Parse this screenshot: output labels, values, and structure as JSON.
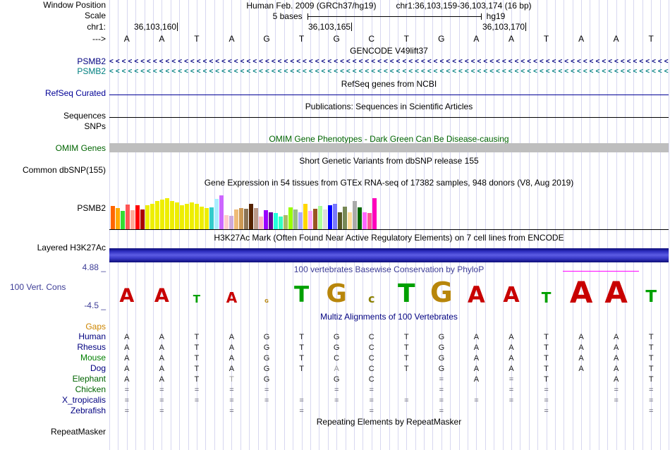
{
  "colors": {
    "grid": "#d7d7f0",
    "magenta_overline": "#ff00ff",
    "baseline": "#000000"
  },
  "header": {
    "assembly": "Human Feb. 2009 (GRCh37/hg19)",
    "position": "chr1:36,103,159-36,103,174 (16 bp)",
    "window_position_label": "Window Position",
    "scale_label": "Scale",
    "scale_value": "5 bases",
    "genome": "hg19",
    "chrom_label": "chr1:",
    "strand_arrow": "--->",
    "coordinates": [
      "36,103,160",
      "36,103,165",
      "36,103,170"
    ],
    "sequence": [
      "A",
      "A",
      "T",
      "A",
      "G",
      "T",
      "G",
      "C",
      "T",
      "G",
      "A",
      "A",
      "T",
      "A",
      "A",
      "T"
    ]
  },
  "tracks": {
    "gencode": {
      "title": "GENCODE V49lift37",
      "genes": [
        {
          "label": "PSMB2",
          "color": "#000080",
          "strand_char": "<"
        },
        {
          "label": "PSMB2",
          "color": "#008080",
          "strand_char": "<"
        }
      ]
    },
    "refseq": {
      "label": "RefSeq Curated",
      "title": "RefSeq genes from NCBI",
      "color": "#000096",
      "line_color": "#000096"
    },
    "publications": {
      "label": "Sequences",
      "title": "Publications: Sequences in Scientific Articles",
      "line_color": "#000000"
    },
    "snps": {
      "label": "SNPs"
    },
    "omim": {
      "label": "OMIM Genes",
      "label_color": "#006400",
      "title": "OMIM Gene Phenotypes - Dark Green Can Be Disease-causing",
      "title_color": "#006400",
      "bar_color": "#bebebe"
    },
    "dbsnp": {
      "label": "Common dbSNP(155)",
      "title": "Short Genetic Variants from dbSNP release 155"
    },
    "gtex": {
      "label": "PSMB2",
      "title": "Gene Expression in 54 tissues from GTEx RNA-seq of 17382 samples, 948 donors (V8, Aug 2019)",
      "bars": [
        [
          "#FF6600",
          33
        ],
        [
          "#FFAA00",
          30
        ],
        [
          "#33DD33",
          26
        ],
        [
          "#FF5555",
          35
        ],
        [
          "#FFAA99",
          27
        ],
        [
          "#FF0000",
          34
        ],
        [
          "#AA0000",
          28
        ],
        [
          "#EEEE00",
          34
        ],
        [
          "#EEEE00",
          36
        ],
        [
          "#EEEE00",
          40
        ],
        [
          "#EEEE00",
          42
        ],
        [
          "#EEEE00",
          44
        ],
        [
          "#EEEE00",
          40
        ],
        [
          "#EEEE00",
          38
        ],
        [
          "#EEEE00",
          34
        ],
        [
          "#EEEE00",
          36
        ],
        [
          "#EEEE00",
          38
        ],
        [
          "#EEEE00",
          36
        ],
        [
          "#EEEE00",
          32
        ],
        [
          "#EEEE00",
          30
        ],
        [
          "#33CCCC",
          31
        ],
        [
          "#AAEEFF",
          43
        ],
        [
          "#CC66FF",
          48
        ],
        [
          "#FFCCCC",
          20
        ],
        [
          "#CCAADD",
          19
        ],
        [
          "#EEBB77",
          28
        ],
        [
          "#CC9955",
          30
        ],
        [
          "#8B7355",
          29
        ],
        [
          "#552200",
          36
        ],
        [
          "#BB9988",
          30
        ],
        [
          "#FFB6C1",
          18
        ],
        [
          "#9900FF",
          27
        ],
        [
          "#660099",
          24
        ],
        [
          "#22FFDD",
          23
        ],
        [
          "#33FFC2",
          18
        ],
        [
          "#AABB66",
          20
        ],
        [
          "#99FF00",
          31
        ],
        [
          "#99BB88",
          28
        ],
        [
          "#AAAAFF",
          24
        ],
        [
          "#FFD700",
          36
        ],
        [
          "#FFAAFF",
          26
        ],
        [
          "#995522",
          29
        ],
        [
          "#AAFF99",
          33
        ],
        [
          "#DDDDDD",
          28
        ],
        [
          "#0000FF",
          34
        ],
        [
          "#7777FF",
          36
        ],
        [
          "#555522",
          24
        ],
        [
          "#778855",
          32
        ],
        [
          "#FFDD99",
          24
        ],
        [
          "#AAAAAA",
          40
        ],
        [
          "#006600",
          31
        ],
        [
          "#FF66FF",
          24
        ],
        [
          "#FF5599",
          23
        ],
        [
          "#FF00BB",
          44
        ]
      ]
    },
    "h3k27ac": {
      "label": "Layered H3K27Ac",
      "title": "H3K27Ac Mark (Often Found Near Active Regulatory Elements) on 7 cell lines from ENCODE",
      "bar_color": "#3333c0"
    },
    "conservation": {
      "label": "100 Vert. Cons",
      "title": "100 vertebrates Basewise Conservation by PhyloP",
      "title_color": "#3c3c96",
      "axis_color": "#3c3c96",
      "max_label": "4.88 _",
      "min_label": "-4.5 _",
      "overline_color": "#ff00ff",
      "logo": [
        [
          "A",
          "#c80000",
          20
        ],
        [
          "A",
          "#c80000",
          20
        ],
        [
          "T",
          "#00a000",
          11
        ],
        [
          "A",
          "#c80000",
          15
        ],
        [
          "G",
          "#b8860b",
          5
        ],
        [
          "T",
          "#00a000",
          23
        ],
        [
          "G",
          "#b8860b",
          27
        ],
        [
          "c",
          "#8b8000",
          12
        ],
        [
          "T",
          "#00a000",
          27
        ],
        [
          "G",
          "#b8860b",
          29
        ],
        [
          "A",
          "#c80000",
          24
        ],
        [
          "A",
          "#c80000",
          22
        ],
        [
          "T",
          "#00a000",
          15
        ],
        [
          "A",
          "#c80000",
          31
        ],
        [
          "A",
          "#c80000",
          31
        ],
        [
          "T",
          "#00a000",
          17
        ]
      ]
    },
    "multiz": {
      "title": "Multiz Alignments of 100 Vertebrates",
      "title_color": "#000080",
      "gaps_label": "Gaps",
      "gaps_color": "#cd8500",
      "species": [
        {
          "name": "Human",
          "color": "#000080",
          "cells": [
            "A",
            "A",
            "T",
            "A",
            "G",
            "T",
            "G",
            "C",
            "T",
            "G",
            "A",
            "A",
            "T",
            "A",
            "A",
            "T"
          ],
          "light": []
        },
        {
          "name": "Rhesus",
          "color": "#000080",
          "cells": [
            "A",
            "A",
            "T",
            "A",
            "G",
            "T",
            "G",
            "C",
            "T",
            "G",
            "A",
            "A",
            "T",
            "A",
            "A",
            "T"
          ],
          "light": []
        },
        {
          "name": "Mouse",
          "color": "#008000",
          "cells": [
            "A",
            "A",
            "T",
            "A",
            "G",
            "T",
            "C",
            "C",
            "T",
            "G",
            "A",
            "A",
            "T",
            "A",
            "A",
            "T"
          ],
          "light": []
        },
        {
          "name": "Dog",
          "color": "#000080",
          "cells": [
            "A",
            "A",
            "T",
            "A",
            "G",
            "T",
            "A",
            "C",
            "T",
            "G",
            "A",
            "A",
            "T",
            "A",
            "A",
            "T"
          ],
          "light": [
            6
          ]
        },
        {
          "name": "Elephant",
          "color": "#006400",
          "cells": [
            "A",
            "A",
            "T",
            "T",
            "G",
            "",
            "G",
            "C",
            "",
            "=",
            "A",
            "=",
            "T",
            "",
            "A",
            "T"
          ],
          "light": [
            3
          ]
        },
        {
          "name": "Chicken",
          "color": "#006400",
          "cells": [
            "=",
            "=",
            "=",
            "=",
            "=",
            "",
            "=",
            "=",
            "",
            "=",
            "",
            "=",
            "=",
            "",
            "=",
            "="
          ],
          "light": []
        },
        {
          "name": "X_tropicalis",
          "color": "#000080",
          "cells": [
            "=",
            "=",
            "=",
            "=",
            "=",
            "=",
            "=",
            "=",
            "=",
            "=",
            "=",
            "=",
            "=",
            "",
            "=",
            "="
          ],
          "light": []
        },
        {
          "name": "Zebrafish",
          "color": "#000080",
          "cells": [
            "=",
            "=",
            "",
            "=",
            "",
            "=",
            "",
            "=",
            "",
            "=",
            "",
            "",
            "=",
            "",
            "",
            "="
          ],
          "light": []
        }
      ]
    },
    "repeatmasker": {
      "label": "RepeatMasker",
      "title": "Repeating Elements by RepeatMasker"
    }
  }
}
